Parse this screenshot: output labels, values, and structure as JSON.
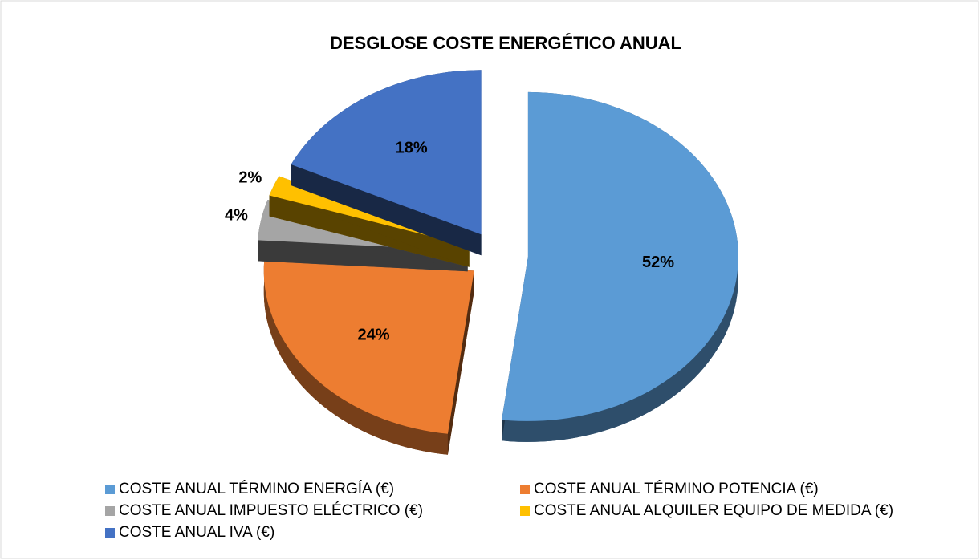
{
  "chart_data": {
    "type": "pie",
    "title": "DESGLOSE COSTE ENERGÉTICO ANUAL",
    "categories": [
      "COSTE ANUAL TÉRMINO ENERGÍA (€)",
      "COSTE ANUAL TÉRMINO POTENCIA (€)",
      "COSTE ANUAL IMPUESTO ELÉCTRICO (€)",
      "COSTE ANUAL ALQUILER EQUIPO DE MEDIDA (€)",
      "COSTE ANUAL IVA (€)"
    ],
    "values": [
      52,
      24,
      4,
      2,
      18
    ],
    "value_labels": [
      "52%",
      "24%",
      "4%",
      "2%",
      "18%"
    ],
    "colors": [
      "#5b9bd5",
      "#ed7d31",
      "#a5a5a5",
      "#ffc000",
      "#4472c4"
    ],
    "legend": "bottom"
  }
}
